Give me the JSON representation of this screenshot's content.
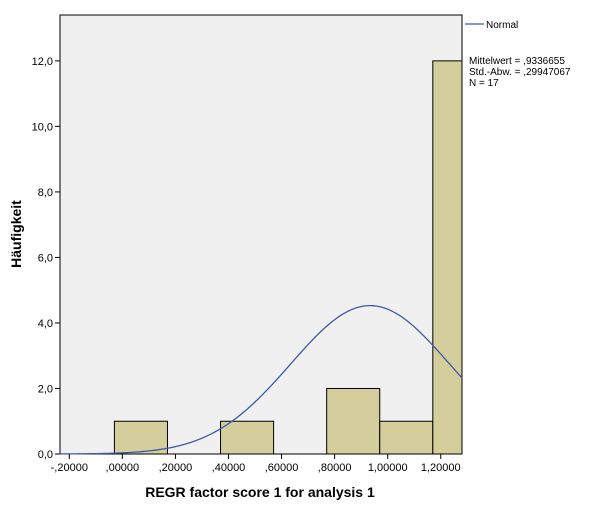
{
  "chart_data": {
    "type": "bar",
    "subtype": "histogram-with-normal-curve",
    "xlabel": "REGR factor score   1 for analysis 1",
    "ylabel": "Häufigkeit",
    "x_ticks": [
      -0.2,
      0.0,
      0.2,
      0.4,
      0.6,
      0.8,
      1.0,
      1.2
    ],
    "x_tick_labels": [
      "-,20000",
      ",00000",
      ",20000",
      ",40000",
      ",60000",
      ",80000",
      "1,00000",
      "1,20000"
    ],
    "y_ticks": [
      0,
      2,
      4,
      6,
      8,
      10,
      12
    ],
    "y_tick_labels": [
      "0,0",
      "2,0",
      "4,0",
      "6,0",
      "8,0",
      "10,0",
      "12,0"
    ],
    "xlim": [
      -0.235,
      1.28
    ],
    "ylim": [
      0,
      13.4
    ],
    "bin_width": 0.2,
    "bins": [
      {
        "start": -0.03,
        "end": 0.17,
        "value": 1
      },
      {
        "start": 0.17,
        "end": 0.37,
        "value": 0
      },
      {
        "start": 0.37,
        "end": 0.57,
        "value": 1
      },
      {
        "start": 0.57,
        "end": 0.77,
        "value": 0
      },
      {
        "start": 0.77,
        "end": 0.97,
        "value": 2
      },
      {
        "start": 0.97,
        "end": 1.17,
        "value": 1
      },
      {
        "start": 1.17,
        "end": 1.37,
        "value": 12
      }
    ],
    "bar_color": "#d3ce9b",
    "curve_color": "#3c5aa8",
    "plot_background": "#f0f0f0",
    "normal": {
      "mean": 0.9336655,
      "sd": 0.29947067,
      "n": 17
    },
    "legend": {
      "placement": "right",
      "label": "Normal"
    },
    "stats": [
      "Mittelwert = ,9336655",
      "Std.-Abw. = ,29947067",
      "N = 17"
    ]
  }
}
